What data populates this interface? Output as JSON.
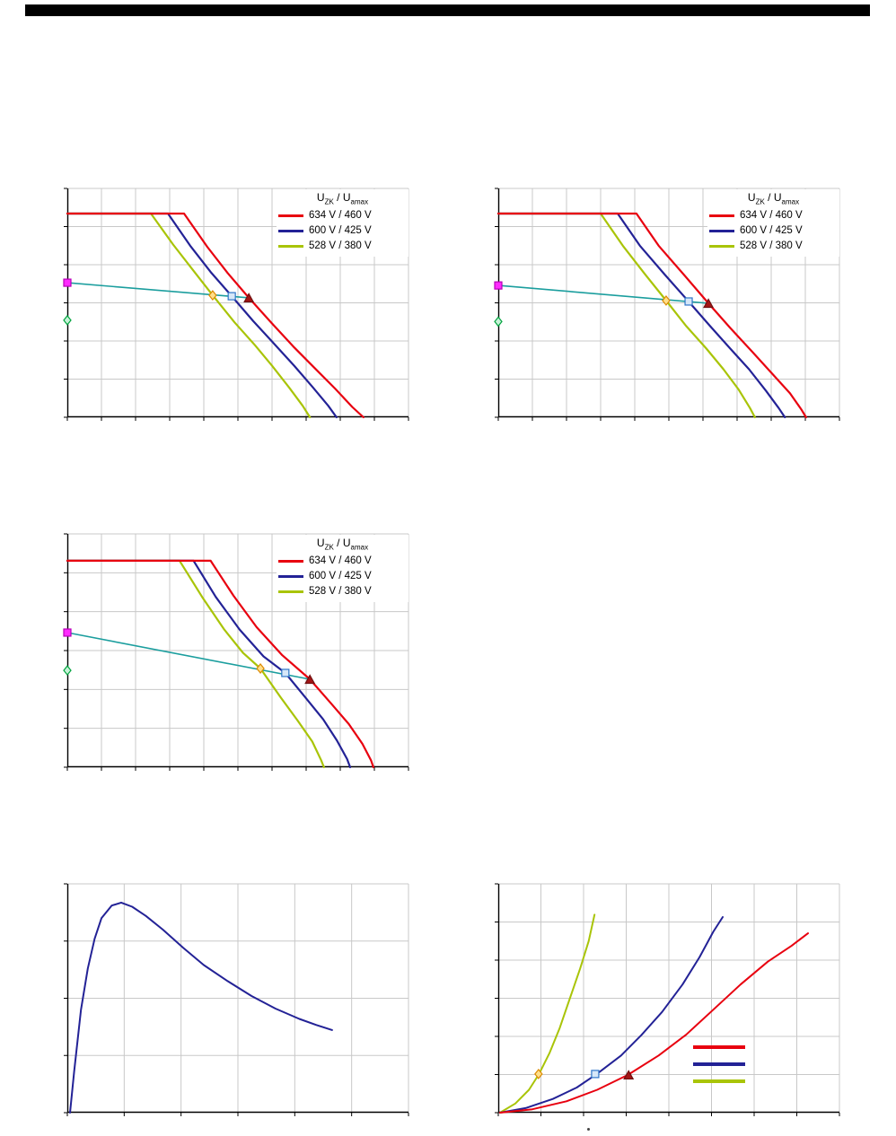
{
  "page": {
    "background": "#ffffff"
  },
  "header": {
    "bar_color": "#000000"
  },
  "palette": {
    "grid": "#c8c8c8",
    "axis": "#000000",
    "red": "#e8000f",
    "blue": "#232296",
    "green": "#a9c408",
    "teal": "#1b9e9e"
  },
  "legend": {
    "title": {
      "main1": "U",
      "sub1": "ZK",
      "mid": " / ",
      "main2": "U",
      "sub2": "amax"
    },
    "entries": [
      {
        "label": "634 V / 460 V",
        "color": "#e8000f"
      },
      {
        "label": "600 V / 425 V",
        "color": "#232296"
      },
      {
        "label": "528 V / 380 V",
        "color": "#a9c408"
      }
    ]
  },
  "chart_data": [
    {
      "id": "top_left",
      "name": "voltage-limit-characteristics-1",
      "type": "line",
      "coordinates": "normalized 0-1 (no axis tick labels visible in source)",
      "grid": {
        "cols": 10,
        "rows": 6
      },
      "legend_visible": true,
      "series": [
        {
          "name": "528 V / 380 V",
          "color": "#a9c408",
          "width": 2.2,
          "points": [
            [
              0,
              0.89
            ],
            [
              0.245,
              0.89
            ],
            [
              0.31,
              0.755
            ],
            [
              0.37,
              0.64
            ],
            [
              0.426,
              0.533
            ],
            [
              0.49,
              0.415
            ],
            [
              0.55,
              0.315
            ],
            [
              0.6,
              0.225
            ],
            [
              0.65,
              0.13
            ],
            [
              0.69,
              0.05
            ],
            [
              0.711,
              0
            ]
          ]
        },
        {
          "name": "600 V / 425 V",
          "color": "#232296",
          "width": 2.2,
          "points": [
            [
              0,
              0.89
            ],
            [
              0.295,
              0.89
            ],
            [
              0.36,
              0.75
            ],
            [
              0.42,
              0.635
            ],
            [
              0.482,
              0.529
            ],
            [
              0.545,
              0.42
            ],
            [
              0.61,
              0.315
            ],
            [
              0.665,
              0.225
            ],
            [
              0.72,
              0.13
            ],
            [
              0.765,
              0.05
            ],
            [
              0.789,
              0
            ]
          ]
        },
        {
          "name": "634 V / 460 V",
          "color": "#e8000f",
          "width": 2.2,
          "points": [
            [
              0,
              0.89
            ],
            [
              0.342,
              0.89
            ],
            [
              0.41,
              0.745
            ],
            [
              0.47,
              0.63
            ],
            [
              0.532,
              0.522
            ],
            [
              0.6,
              0.41
            ],
            [
              0.665,
              0.305
            ],
            [
              0.725,
              0.215
            ],
            [
              0.785,
              0.125
            ],
            [
              0.835,
              0.045
            ],
            [
              0.868,
              0
            ]
          ]
        },
        {
          "name": "load line",
          "color": "#1b9e9e",
          "width": 1.6,
          "points": [
            [
              0,
              0.588
            ],
            [
              0.532,
              0.522
            ]
          ]
        }
      ],
      "markers": [
        {
          "shape": "square",
          "x": 0,
          "y": 0.588,
          "stroke": "#b800b8",
          "fill": "#ff2bff",
          "size": 4,
          "name": "marker-magenta-square"
        },
        {
          "shape": "diamond",
          "x": 0,
          "y": 0.424,
          "stroke": "#00a33e",
          "fill": "#c8f2d8",
          "size": 4,
          "name": "marker-green-diamond"
        },
        {
          "shape": "diamond",
          "x": 0.426,
          "y": 0.533,
          "stroke": "#dd8a00",
          "fill": "#ffdf8a",
          "size": 4,
          "name": "marker-orange-diamond"
        },
        {
          "shape": "square",
          "x": 0.482,
          "y": 0.529,
          "stroke": "#2e75c8",
          "fill": "#d6e7f8",
          "size": 4,
          "name": "marker-blue-square"
        },
        {
          "shape": "triangle",
          "x": 0.532,
          "y": 0.522,
          "stroke": "#701010",
          "fill": "#a31515",
          "size": 4.5,
          "name": "marker-red-triangle"
        }
      ]
    },
    {
      "id": "top_right",
      "name": "voltage-limit-characteristics-2",
      "type": "line",
      "coordinates": "normalized 0-1 (no axis tick labels visible in source)",
      "grid": {
        "cols": 10,
        "rows": 6
      },
      "legend_visible": true,
      "series": [
        {
          "name": "528 V / 380 V",
          "color": "#a9c408",
          "width": 2.2,
          "points": [
            [
              0,
              0.89
            ],
            [
              0.3,
              0.89
            ],
            [
              0.365,
              0.75
            ],
            [
              0.43,
              0.625
            ],
            [
              0.492,
              0.51
            ],
            [
              0.55,
              0.4
            ],
            [
              0.61,
              0.3
            ],
            [
              0.66,
              0.21
            ],
            [
              0.705,
              0.12
            ],
            [
              0.738,
              0.04
            ],
            [
              0.752,
              0
            ]
          ]
        },
        {
          "name": "600 V / 425 V",
          "color": "#232296",
          "width": 2.2,
          "points": [
            [
              0,
              0.89
            ],
            [
              0.35,
              0.89
            ],
            [
              0.415,
              0.75
            ],
            [
              0.487,
              0.625
            ],
            [
              0.558,
              0.506
            ],
            [
              0.62,
              0.4
            ],
            [
              0.68,
              0.3
            ],
            [
              0.735,
              0.21
            ],
            [
              0.785,
              0.115
            ],
            [
              0.822,
              0.04
            ],
            [
              0.84,
              0
            ]
          ]
        },
        {
          "name": "634 V / 460 V",
          "color": "#e8000f",
          "width": 2.2,
          "points": [
            [
              0,
              0.89
            ],
            [
              0.405,
              0.89
            ],
            [
              0.47,
              0.75
            ],
            [
              0.543,
              0.625
            ],
            [
              0.616,
              0.498
            ],
            [
              0.68,
              0.39
            ],
            [
              0.745,
              0.285
            ],
            [
              0.8,
              0.195
            ],
            [
              0.855,
              0.105
            ],
            [
              0.888,
              0.035
            ],
            [
              0.902,
              0
            ]
          ]
        },
        {
          "name": "load line",
          "color": "#1b9e9e",
          "width": 1.6,
          "points": [
            [
              0,
              0.576
            ],
            [
              0.616,
              0.498
            ]
          ]
        }
      ],
      "markers": [
        {
          "shape": "square",
          "x": 0,
          "y": 0.576,
          "stroke": "#b800b8",
          "fill": "#ff2bff",
          "size": 4,
          "name": "marker-magenta-square"
        },
        {
          "shape": "diamond",
          "x": 0,
          "y": 0.418,
          "stroke": "#00a33e",
          "fill": "#c8f2d8",
          "size": 4,
          "name": "marker-green-diamond"
        },
        {
          "shape": "diamond",
          "x": 0.492,
          "y": 0.51,
          "stroke": "#dd8a00",
          "fill": "#ffdf8a",
          "size": 4,
          "name": "marker-orange-diamond"
        },
        {
          "shape": "square",
          "x": 0.558,
          "y": 0.506,
          "stroke": "#2e75c8",
          "fill": "#d6e7f8",
          "size": 4,
          "name": "marker-blue-square"
        },
        {
          "shape": "triangle",
          "x": 0.616,
          "y": 0.498,
          "stroke": "#701010",
          "fill": "#a31515",
          "size": 4.5,
          "name": "marker-red-triangle"
        }
      ]
    },
    {
      "id": "middle_left",
      "name": "voltage-limit-characteristics-3",
      "type": "line",
      "coordinates": "normalized 0-1 (no axis tick labels visible in source)",
      "grid": {
        "cols": 10,
        "rows": 6
      },
      "legend_visible": true,
      "series": [
        {
          "name": "528 V / 380 V",
          "color": "#a9c408",
          "width": 2.2,
          "points": [
            [
              0,
              0.885
            ],
            [
              0.329,
              0.885
            ],
            [
              0.395,
              0.73
            ],
            [
              0.46,
              0.59
            ],
            [
              0.515,
              0.49
            ],
            [
              0.566,
              0.423
            ],
            [
              0.625,
              0.3
            ],
            [
              0.675,
              0.2
            ],
            [
              0.718,
              0.11
            ],
            [
              0.744,
              0.03
            ],
            [
              0.752,
              0
            ]
          ]
        },
        {
          "name": "600 V / 425 V",
          "color": "#232296",
          "width": 2.2,
          "points": [
            [
              0,
              0.885
            ],
            [
              0.37,
              0.885
            ],
            [
              0.435,
              0.73
            ],
            [
              0.505,
              0.59
            ],
            [
              0.575,
              0.475
            ],
            [
              0.639,
              0.404
            ],
            [
              0.7,
              0.295
            ],
            [
              0.75,
              0.205
            ],
            [
              0.79,
              0.115
            ],
            [
              0.82,
              0.035
            ],
            [
              0.829,
              0
            ]
          ]
        },
        {
          "name": "634 V / 460 V",
          "color": "#e8000f",
          "width": 2.2,
          "points": [
            [
              0,
              0.885
            ],
            [
              0.42,
              0.885
            ],
            [
              0.487,
              0.735
            ],
            [
              0.555,
              0.6
            ],
            [
              0.63,
              0.48
            ],
            [
              0.711,
              0.377
            ],
            [
              0.775,
              0.27
            ],
            [
              0.825,
              0.185
            ],
            [
              0.865,
              0.1
            ],
            [
              0.89,
              0.03
            ],
            [
              0.897,
              0
            ]
          ]
        },
        {
          "name": "load line",
          "color": "#1b9e9e",
          "width": 1.6,
          "points": [
            [
              0,
              0.577
            ],
            [
              0.711,
              0.377
            ]
          ]
        }
      ],
      "markers": [
        {
          "shape": "square",
          "x": 0,
          "y": 0.577,
          "stroke": "#b800b8",
          "fill": "#ff2bff",
          "size": 4,
          "name": "marker-magenta-square"
        },
        {
          "shape": "diamond",
          "x": 0,
          "y": 0.415,
          "stroke": "#00a33e",
          "fill": "#c8f2d8",
          "size": 4,
          "name": "marker-green-diamond"
        },
        {
          "shape": "diamond",
          "x": 0.566,
          "y": 0.423,
          "stroke": "#dd8a00",
          "fill": "#ffdf8a",
          "size": 4,
          "name": "marker-orange-diamond"
        },
        {
          "shape": "square",
          "x": 0.639,
          "y": 0.404,
          "stroke": "#2e75c8",
          "fill": "#d6e7f8",
          "size": 4,
          "name": "marker-blue-square"
        },
        {
          "shape": "triangle",
          "x": 0.711,
          "y": 0.377,
          "stroke": "#701010",
          "fill": "#a31515",
          "size": 4.5,
          "name": "marker-red-triangle"
        }
      ]
    },
    {
      "id": "bottom_left",
      "name": "single-curve-peak-decay",
      "type": "line",
      "coordinates": "normalized 0-1 (no axis tick labels visible in source)",
      "grid": {
        "cols": 6,
        "rows": 4
      },
      "legend_visible": false,
      "series": [
        {
          "name": "curve",
          "color": "#232296",
          "width": 2,
          "points": [
            [
              0.008,
              0
            ],
            [
              0.02,
              0.18
            ],
            [
              0.04,
              0.45
            ],
            [
              0.06,
              0.63
            ],
            [
              0.08,
              0.76
            ],
            [
              0.1,
              0.85
            ],
            [
              0.13,
              0.905
            ],
            [
              0.158,
              0.918
            ],
            [
              0.19,
              0.9
            ],
            [
              0.23,
              0.86
            ],
            [
              0.28,
              0.8
            ],
            [
              0.34,
              0.72
            ],
            [
              0.4,
              0.645
            ],
            [
              0.47,
              0.575
            ],
            [
              0.54,
              0.51
            ],
            [
              0.61,
              0.455
            ],
            [
              0.68,
              0.41
            ],
            [
              0.73,
              0.383
            ],
            [
              0.776,
              0.361
            ]
          ]
        }
      ],
      "markers": []
    },
    {
      "id": "bottom_right",
      "name": "three-rising-curves",
      "type": "line",
      "coordinates": "normalized 0-1 (no axis tick labels visible in source)",
      "grid": {
        "cols": 8,
        "rows": 6
      },
      "legend_visible": false,
      "mini_legend": true,
      "series": [
        {
          "name": "528 V / 380 V",
          "color": "#a9c408",
          "width": 2,
          "points": [
            [
              0.005,
              0
            ],
            [
              0.05,
              0.04
            ],
            [
              0.09,
              0.1
            ],
            [
              0.12,
              0.17
            ],
            [
              0.15,
              0.26
            ],
            [
              0.18,
              0.37
            ],
            [
              0.21,
              0.5
            ],
            [
              0.24,
              0.63
            ],
            [
              0.265,
              0.75
            ],
            [
              0.282,
              0.865
            ]
          ]
        },
        {
          "name": "600 V / 425 V",
          "color": "#232296",
          "width": 2,
          "points": [
            [
              0.005,
              0
            ],
            [
              0.08,
              0.02
            ],
            [
              0.16,
              0.06
            ],
            [
              0.23,
              0.11
            ],
            [
              0.29,
              0.17
            ],
            [
              0.36,
              0.25
            ],
            [
              0.42,
              0.34
            ],
            [
              0.48,
              0.44
            ],
            [
              0.54,
              0.56
            ],
            [
              0.59,
              0.68
            ],
            [
              0.63,
              0.79
            ],
            [
              0.658,
              0.855
            ]
          ]
        },
        {
          "name": "634 V / 460 V",
          "color": "#e8000f",
          "width": 2,
          "points": [
            [
              0.005,
              0
            ],
            [
              0.1,
              0.015
            ],
            [
              0.2,
              0.05
            ],
            [
              0.29,
              0.1
            ],
            [
              0.38,
              0.165
            ],
            [
              0.47,
              0.25
            ],
            [
              0.55,
              0.34
            ],
            [
              0.63,
              0.45
            ],
            [
              0.71,
              0.56
            ],
            [
              0.79,
              0.66
            ],
            [
              0.86,
              0.73
            ],
            [
              0.908,
              0.784
            ]
          ]
        }
      ],
      "markers": [
        {
          "shape": "diamond",
          "x": 0.118,
          "y": 0.169,
          "stroke": "#dd8a00",
          "fill": "#ffdf8a",
          "size": 4,
          "name": "marker-orange-diamond"
        },
        {
          "shape": "square",
          "x": 0.284,
          "y": 0.169,
          "stroke": "#2e75c8",
          "fill": "#d6e7f8",
          "size": 4,
          "name": "marker-blue-square"
        },
        {
          "shape": "triangle",
          "x": 0.382,
          "y": 0.165,
          "stroke": "#701010",
          "fill": "#a31515",
          "size": 4.5,
          "name": "marker-red-triangle"
        }
      ]
    }
  ]
}
